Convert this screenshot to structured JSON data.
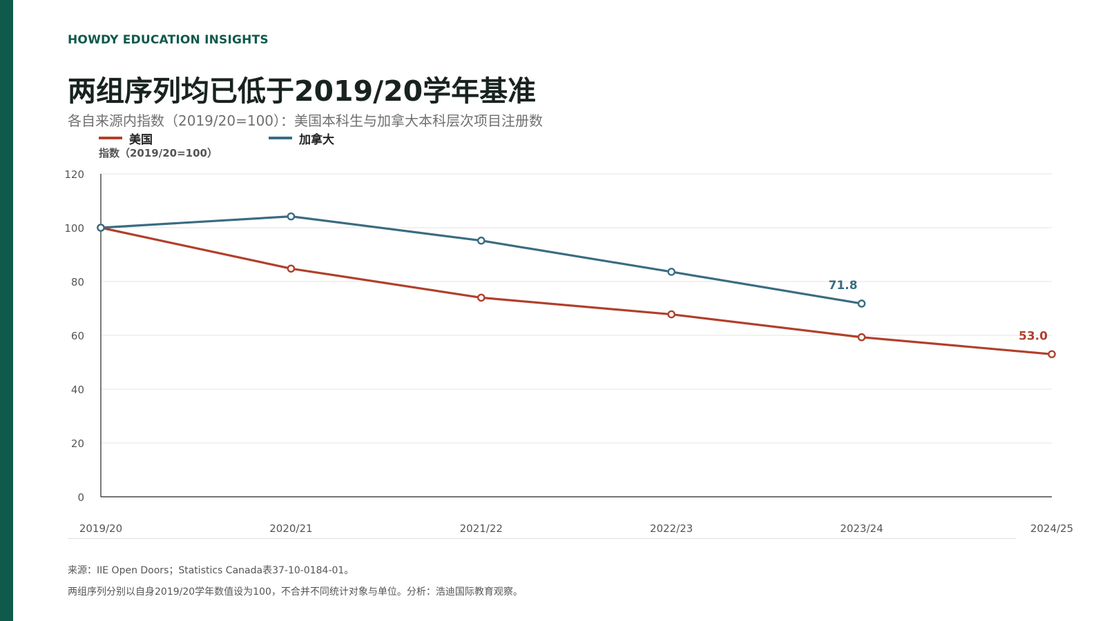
{
  "brand": "HOWDY EDUCATION INSIGHTS",
  "colors": {
    "accent": "#0f5a4a",
    "us": "#b0402c",
    "canada": "#3a6c82"
  },
  "chart_data": {
    "type": "line",
    "title": "两组序列均已低于2019/20学年基准",
    "subtitle": "各自来源内指数（2019/20=100）：美国本科生与加拿大本科层次项目注册数",
    "ylabel": "指数（2019/20=100）",
    "xlabel": "",
    "categories": [
      "2019/20",
      "2020/21",
      "2021/22",
      "2022/23",
      "2023/24",
      "2024/25"
    ],
    "ylim": [
      0,
      120
    ],
    "yticks": [
      0,
      20,
      40,
      60,
      80,
      100,
      120
    ],
    "grid": true,
    "legend_position": "top-left",
    "series": [
      {
        "name": "美国",
        "color": "#b0402c",
        "values": [
          100,
          84.8,
          74.0,
          67.8,
          59.3,
          53.0
        ],
        "end_label": "53.0"
      },
      {
        "name": "加拿大",
        "color": "#3a6c82",
        "values": [
          100,
          104.2,
          95.2,
          83.6,
          71.8,
          null
        ],
        "end_label": "71.8"
      }
    ]
  },
  "footer": {
    "source": "来源：IIE Open Doors；Statistics Canada表37-10-0184-01。",
    "note": "两组序列分别以自身2019/20学年数值设为100，不合并不同统计对象与单位。分析：浩迪国际教育观察。"
  }
}
